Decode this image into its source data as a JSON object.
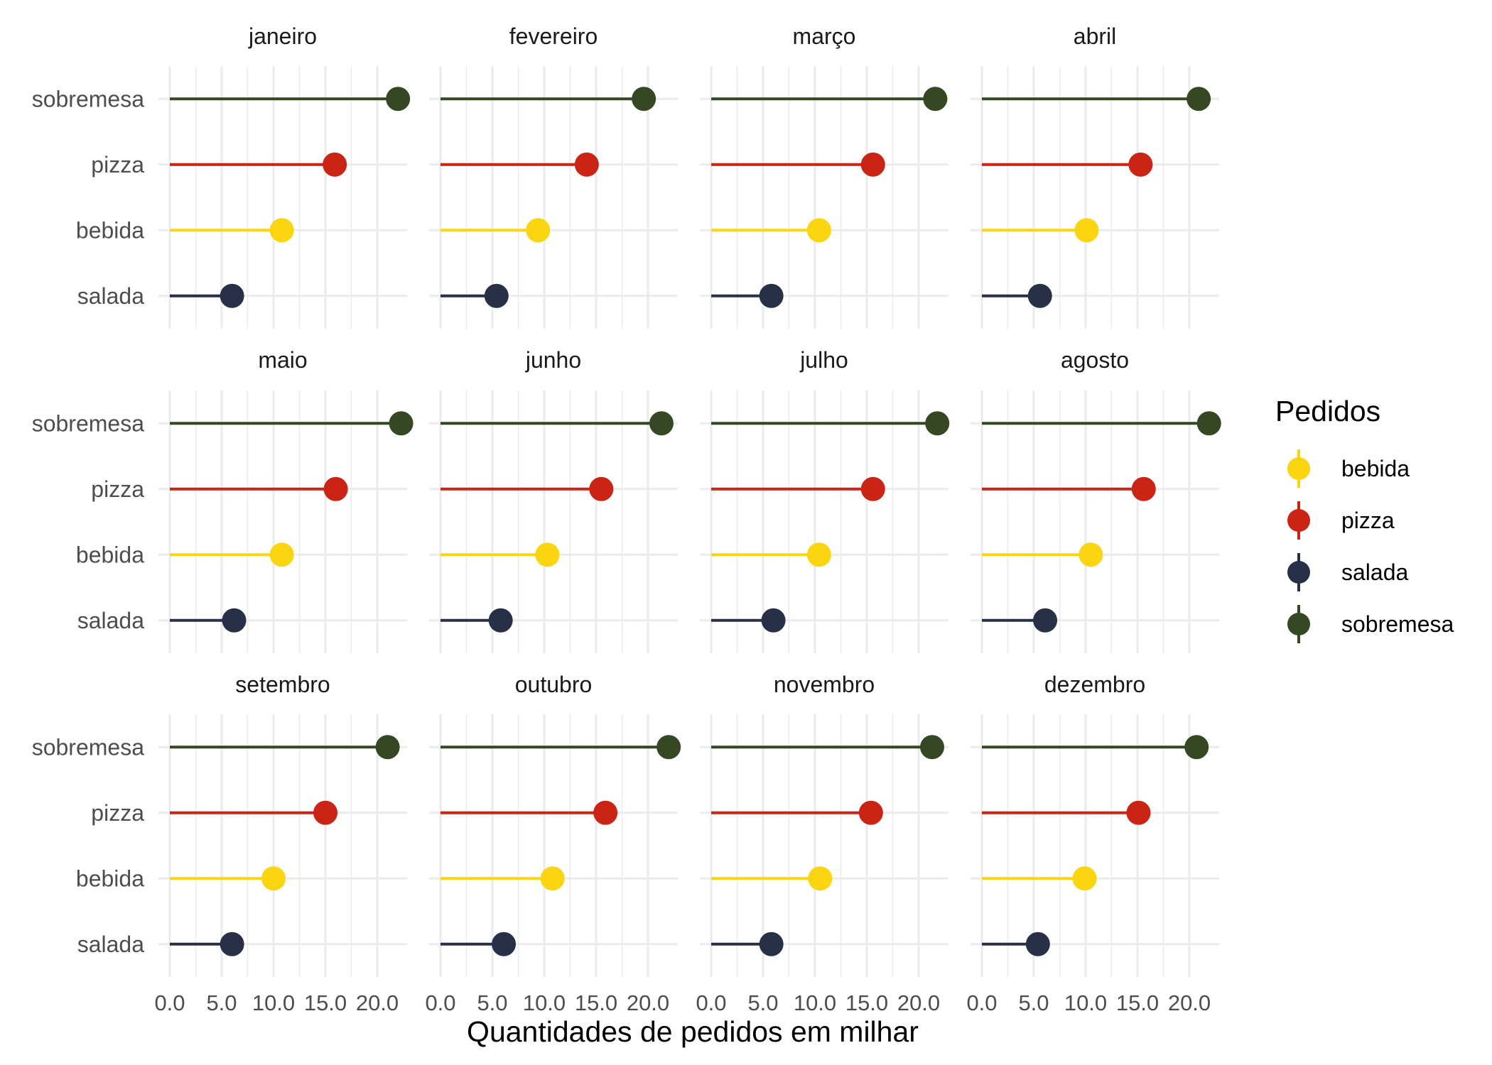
{
  "chart_data": {
    "type": "lollipop",
    "xlabel": "Quantidades de pedidos em milhar",
    "ylabel": "",
    "xlim": [
      0,
      22.5
    ],
    "x_ticks": [
      0,
      5,
      10,
      15,
      20
    ],
    "x_tick_labels": [
      "0.0",
      "5.0",
      "10.0",
      "15.0",
      "20.0"
    ],
    "categories": [
      "salada",
      "bebida",
      "pizza",
      "sobremesa"
    ],
    "legend": {
      "title": "Pedidos",
      "position": "right",
      "items": [
        "bebida",
        "pizza",
        "salada",
        "sobremesa"
      ]
    },
    "colors": {
      "bebida": "#fad510",
      "pizza": "#cb2314",
      "salada": "#273046",
      "sobremesa": "#354823"
    },
    "grid": true,
    "facets": [
      {
        "label": "janeiro",
        "values": {
          "salada": 6.0,
          "bebida": 10.8,
          "pizza": 15.9,
          "sobremesa": 22.0
        }
      },
      {
        "label": "fevereiro",
        "values": {
          "salada": 5.4,
          "bebida": 9.4,
          "pizza": 14.1,
          "sobremesa": 19.6
        }
      },
      {
        "label": "março",
        "values": {
          "salada": 5.8,
          "bebida": 10.4,
          "pizza": 15.6,
          "sobremesa": 21.6
        }
      },
      {
        "label": "abril",
        "values": {
          "salada": 5.6,
          "bebida": 10.1,
          "pizza": 15.3,
          "sobremesa": 20.9
        }
      },
      {
        "label": "maio",
        "values": {
          "salada": 6.2,
          "bebida": 10.8,
          "pizza": 16.0,
          "sobremesa": 22.3
        }
      },
      {
        "label": "junho",
        "values": {
          "salada": 5.8,
          "bebida": 10.3,
          "pizza": 15.5,
          "sobremesa": 21.3
        }
      },
      {
        "label": "julho",
        "values": {
          "salada": 6.0,
          "bebida": 10.4,
          "pizza": 15.6,
          "sobremesa": 21.8
        }
      },
      {
        "label": "agosto",
        "values": {
          "salada": 6.1,
          "bebida": 10.5,
          "pizza": 15.6,
          "sobremesa": 21.9
        }
      },
      {
        "label": "setembro",
        "values": {
          "salada": 6.0,
          "bebida": 10.0,
          "pizza": 15.0,
          "sobremesa": 21.0
        }
      },
      {
        "label": "outubro",
        "values": {
          "salada": 6.1,
          "bebida": 10.8,
          "pizza": 15.9,
          "sobremesa": 22.0
        }
      },
      {
        "label": "novembro",
        "values": {
          "salada": 5.8,
          "bebida": 10.5,
          "pizza": 15.4,
          "sobremesa": 21.3
        }
      },
      {
        "label": "dezembro",
        "values": {
          "salada": 5.4,
          "bebida": 9.9,
          "pizza": 15.1,
          "sobremesa": 20.7
        }
      }
    ]
  }
}
